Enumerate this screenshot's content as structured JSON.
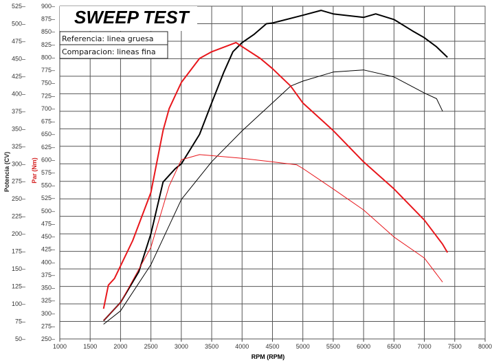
{
  "chart_data": {
    "type": "line",
    "title": "SWEEP TEST",
    "xlabel": "RPM (RPM)",
    "ylabel_left": "Potencia (CV)",
    "ylabel_right": "Par (Nm)",
    "xlim": [
      1000,
      8000
    ],
    "ylim_power": [
      50,
      525
    ],
    "ylim_torque": [
      250,
      900
    ],
    "grid": true,
    "x_ticks": [
      "1000",
      "1500",
      "2000",
      "2500",
      "3000",
      "3500",
      "4000",
      "4500",
      "5000",
      "5500",
      "6000",
      "6500",
      "7000",
      "7500",
      "8000"
    ],
    "power_ticks": [
      "525",
      "500",
      "475",
      "450",
      "425",
      "400",
      "375",
      "350",
      "325",
      "300",
      "275",
      "250",
      "225",
      "200",
      "175",
      "150",
      "125",
      "100",
      "75",
      "50"
    ],
    "torque_ticks": [
      "900",
      "875",
      "850",
      "825",
      "800",
      "775",
      "750",
      "725",
      "700",
      "675",
      "650",
      "625",
      "600",
      "575",
      "550",
      "525",
      "500",
      "475",
      "450",
      "425",
      "400",
      "375",
      "350",
      "325",
      "300",
      "275",
      "250"
    ],
    "legend": [
      "Referencia: linea gruesa",
      "Comparacion: lineas fina"
    ],
    "colors": {
      "power": "#000000",
      "torque": "#e8161b",
      "axis_power_label": "#222222",
      "axis_torque_label": "#d42020"
    },
    "series": [
      {
        "name": "power-reference",
        "axis": "power",
        "style": "thick",
        "color": "#000000",
        "x": [
          1720,
          2000,
          2300,
          2500,
          2700,
          2900,
          3000,
          3300,
          3500,
          3700,
          3850,
          4000,
          4200,
          4400,
          4500,
          5000,
          5300,
          5500,
          6000,
          6200,
          6500,
          6800,
          7000,
          7200,
          7380
        ],
        "y": [
          76,
          102,
          146,
          200,
          274,
          293,
          300,
          342,
          387,
          431,
          460,
          473,
          485,
          500,
          501,
          512,
          519,
          514,
          509,
          514,
          506,
          490,
          480,
          467,
          452
        ]
      },
      {
        "name": "power-comparison",
        "axis": "power",
        "style": "thin",
        "color": "#000000",
        "x": [
          1720,
          2000,
          2500,
          3000,
          3500,
          4000,
          4500,
          4800,
          5000,
          5500,
          6000,
          6500,
          7000,
          7200,
          7300
        ],
        "y": [
          71,
          90,
          156,
          249,
          303,
          347,
          387,
          411,
          418,
          431,
          434,
          424,
          401,
          393,
          375
        ]
      },
      {
        "name": "torque-reference",
        "axis": "torque",
        "style": "thick",
        "color": "#e8161b",
        "x": [
          1720,
          1800,
          1900,
          2200,
          2500,
          2700,
          2800,
          3000,
          3300,
          3500,
          3900,
          4000,
          4300,
          4500,
          4800,
          5000,
          5500,
          6000,
          6500,
          7000,
          7300,
          7380
        ],
        "y": [
          309,
          355,
          368,
          442,
          536,
          657,
          700,
          751,
          798,
          811,
          829,
          821,
          798,
          778,
          744,
          711,
          657,
          596,
          543,
          482,
          435,
          419
        ]
      },
      {
        "name": "torque-comparison",
        "axis": "torque",
        "style": "thin",
        "color": "#e8161b",
        "x": [
          1720,
          2000,
          2500,
          2800,
          3000,
          3300,
          3500,
          4000,
          4500,
          4900,
          5000,
          5500,
          6000,
          6500,
          7000,
          7300
        ],
        "y": [
          286,
          321,
          429,
          549,
          600,
          610,
          608,
          603,
          596,
          590,
          583,
          543,
          502,
          449,
          408,
          361
        ]
      }
    ]
  }
}
